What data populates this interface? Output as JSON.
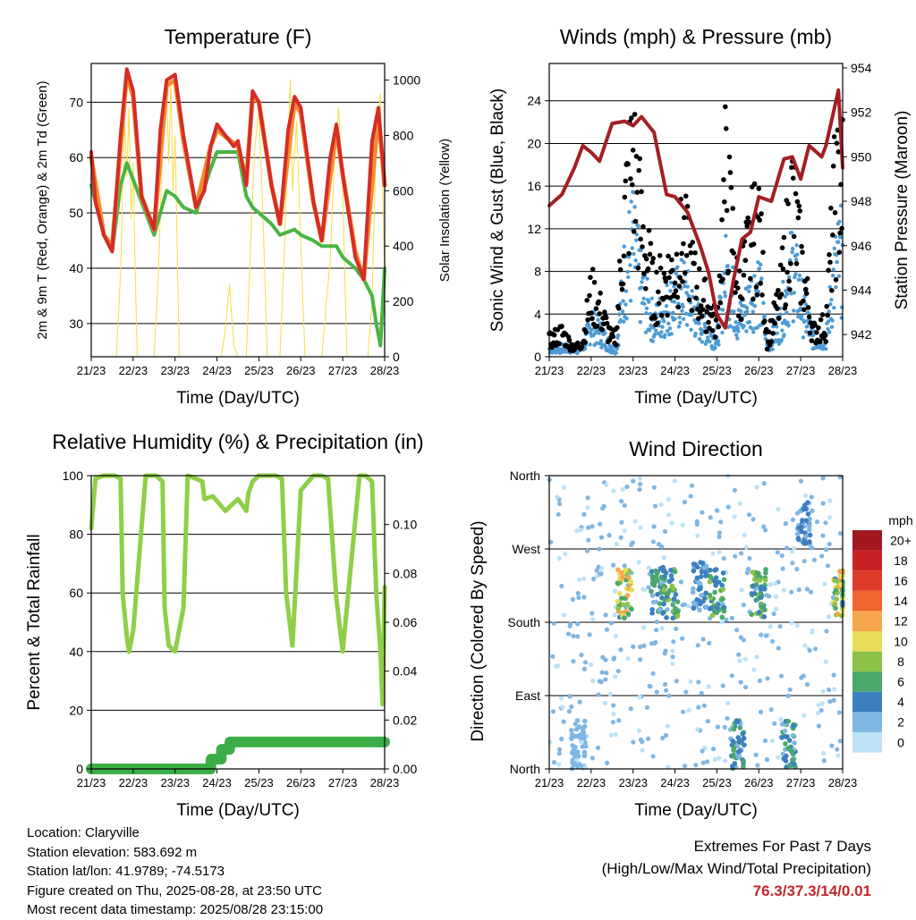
{
  "colors": {
    "red": "#d42c27",
    "orange": "#f58b2e",
    "green": "#49b542",
    "yellow": "#f5dd4c",
    "black": "#000000",
    "blue": "#4c9bd5",
    "maroon": "#a31f23",
    "rh_green": "#8ecf47",
    "precip_green": "#3cae48"
  },
  "chart_data": [
    {
      "type": "line",
      "title": "Temperature (F)",
      "xlabel": "Time (Day/UTC)",
      "ylabel": "2m & 9m T (Red, Orange) & 2m Td (Green)",
      "y2label": "Solar Insolation (Yellow)",
      "ylim": [
        24,
        77
      ],
      "y2lim": [
        0,
        1060
      ],
      "x_ticks": [
        "21/23",
        "22/23",
        "23/23",
        "24/23",
        "25/23",
        "26/23",
        "27/23",
        "28/23"
      ],
      "y_ticks": [
        30,
        40,
        50,
        60,
        70
      ],
      "y2_ticks": [
        0,
        200,
        400,
        600,
        800,
        1000
      ],
      "grid": true,
      "series": [
        {
          "name": "2m T",
          "color": "red",
          "x": [
            0,
            0.1,
            0.3,
            0.5,
            0.7,
            0.85,
            1.0,
            1.2,
            1.5,
            1.65,
            1.8,
            2.0,
            2.2,
            2.5,
            2.7,
            2.85,
            3.0,
            3.2,
            3.4,
            3.5,
            3.7,
            3.85,
            4.0,
            4.3,
            4.5,
            4.7,
            4.85,
            5.0,
            5.3,
            5.5,
            5.7,
            5.85,
            6.0,
            6.3,
            6.5,
            6.7,
            6.85,
            7.0
          ],
          "y": [
            61,
            52,
            46,
            43,
            64,
            76,
            72,
            53,
            47,
            65,
            74,
            75,
            64,
            51,
            54,
            62,
            66,
            64,
            62,
            63,
            55,
            72,
            70,
            55,
            48,
            65,
            71,
            69,
            52,
            45,
            60,
            66,
            57,
            42,
            38,
            63,
            69,
            55
          ]
        },
        {
          "name": "9m T",
          "color": "orange",
          "x": [
            0,
            0.3,
            0.5,
            0.7,
            0.85,
            1.0,
            1.2,
            1.5,
            1.8,
            2.0,
            2.2,
            2.5,
            2.85,
            3.0,
            3.5,
            3.7,
            3.85,
            4.0,
            4.3,
            4.5,
            4.85,
            5.0,
            5.3,
            5.5,
            5.85,
            6.0,
            6.3,
            6.5,
            6.85,
            7.0
          ],
          "y": [
            60,
            46,
            44,
            62,
            75,
            71,
            53,
            47,
            73,
            74,
            63,
            51,
            62,
            65,
            62,
            56,
            71,
            70,
            55,
            48,
            70,
            68,
            52,
            45,
            65,
            57,
            43,
            38,
            68,
            55
          ]
        },
        {
          "name": "2m Td",
          "color": "green",
          "x": [
            0,
            0.3,
            0.5,
            0.7,
            0.85,
            1.0,
            1.2,
            1.5,
            1.8,
            2.0,
            2.2,
            2.5,
            2.85,
            3.0,
            3.5,
            3.7,
            3.85,
            4.0,
            4.3,
            4.5,
            4.85,
            5.0,
            5.3,
            5.5,
            5.85,
            6.0,
            6.3,
            6.5,
            6.7,
            6.8,
            6.9,
            7.0
          ],
          "y": [
            55,
            46,
            43,
            55,
            59,
            56,
            52,
            46,
            54,
            53,
            51,
            50,
            58,
            61,
            61,
            53,
            51,
            50,
            48,
            46,
            47,
            46,
            45,
            44,
            44,
            42,
            40,
            38,
            35,
            30,
            26,
            40
          ]
        },
        {
          "name": "Solar Insolation",
          "color": "yellow",
          "axis": "y2",
          "x": [
            0,
            0.1,
            0.2,
            0.4,
            0.5,
            0.6,
            0.7,
            0.75,
            0.8,
            0.85,
            0.9,
            0.95,
            1.0,
            1.05,
            1.1,
            1.5,
            1.6,
            1.7,
            1.8,
            1.85,
            1.9,
            1.95,
            2.0,
            2.1,
            2.5,
            2.7,
            3.0,
            3.1,
            3.2,
            3.3,
            3.4,
            3.5,
            3.7,
            3.8,
            3.9,
            4.0,
            4.1,
            4.2,
            4.5,
            4.6,
            4.7,
            4.75,
            4.8,
            4.9,
            5.0,
            5.1,
            5.5,
            5.7,
            5.8,
            5.9,
            6.0,
            6.1,
            6.5,
            6.6,
            6.7,
            6.8,
            6.9,
            7.0
          ],
          "y": [
            0,
            0,
            0,
            0,
            0,
            0,
            300,
            600,
            850,
            650,
            900,
            500,
            700,
            300,
            0,
            0,
            300,
            750,
            950,
            700,
            1000,
            600,
            800,
            0,
            0,
            0,
            0,
            0,
            100,
            260,
            40,
            0,
            0,
            400,
            750,
            900,
            500,
            0,
            0,
            350,
            800,
            1000,
            600,
            850,
            400,
            0,
            0,
            350,
            700,
            900,
            600,
            0,
            0,
            0,
            200,
            800,
            950,
            300
          ]
        }
      ]
    },
    {
      "type": "scatter",
      "title": "Winds (mph) & Pressure (mb)",
      "xlabel": "Time (Day/UTC)",
      "ylabel": "Sonic Wind & Gust (Blue, Black)",
      "y2label": "Station Pressure (Maroon)",
      "ylim": [
        0,
        27.5
      ],
      "y2lim": [
        941.0,
        954.2
      ],
      "x_ticks": [
        "21/23",
        "22/23",
        "23/23",
        "24/23",
        "25/23",
        "26/23",
        "27/23",
        "28/23"
      ],
      "y_ticks": [
        0,
        4,
        8,
        12,
        16,
        20,
        24
      ],
      "y2_ticks": [
        942,
        944,
        946,
        948,
        950,
        952,
        954
      ],
      "grid": true,
      "series": [
        {
          "name": "Pressure",
          "color": "maroon",
          "axis": "y2",
          "x": [
            0,
            0.3,
            0.6,
            0.8,
            1.0,
            1.2,
            1.5,
            1.8,
            2.0,
            2.2,
            2.5,
            2.8,
            3.0,
            3.3,
            3.6,
            3.8,
            4.0,
            4.2,
            4.4,
            4.6,
            4.8,
            5.0,
            5.3,
            5.6,
            5.8,
            6.0,
            6.2,
            6.5,
            6.6,
            6.9,
            7.0
          ],
          "y": [
            947.8,
            948.3,
            949.5,
            950.5,
            950.2,
            949.8,
            951.5,
            951.6,
            951.4,
            951.8,
            951.1,
            948.3,
            948.2,
            947.5,
            946.0,
            944.8,
            942.9,
            942.3,
            944.5,
            946.3,
            946.6,
            948.2,
            948.0,
            949.9,
            950.0,
            949.0,
            950.5,
            950.0,
            950.5,
            953.0,
            949.5
          ]
        },
        {
          "name": "Gust",
          "color": "black",
          "x": [
            0,
            0.3,
            0.6,
            0.8,
            1.0,
            1.2,
            1.5,
            1.6,
            1.8,
            2.0,
            2.2,
            2.5,
            2.8,
            3.0,
            3.2,
            3.5,
            3.8,
            4.0,
            4.2,
            4.4,
            4.5,
            4.8,
            5.0,
            5.2,
            5.5,
            5.8,
            6.0,
            6.3,
            6.6,
            6.8,
            6.95
          ],
          "y": [
            2,
            3,
            1,
            2,
            8,
            6,
            2,
            3,
            18,
            25,
            16,
            8,
            10,
            11,
            15,
            9,
            6,
            4,
            22,
            14,
            8,
            14,
            17,
            2,
            7,
            20,
            12,
            3,
            4,
            19,
            22
          ]
        },
        {
          "name": "Wind",
          "color": "blue",
          "x": [
            0,
            0.3,
            0.6,
            0.8,
            1.0,
            1.2,
            1.5,
            1.6,
            1.8,
            2.0,
            2.2,
            2.5,
            2.8,
            3.0,
            3.2,
            3.5,
            3.8,
            4.0,
            4.2,
            4.4,
            4.5,
            4.8,
            5.0,
            5.2,
            5.5,
            5.8,
            6.0,
            6.3,
            6.6,
            6.8,
            6.95
          ],
          "y": [
            1,
            1,
            1,
            1,
            4,
            3,
            1,
            1,
            10,
            14,
            8,
            4,
            6,
            7,
            8,
            5,
            3,
            2,
            10,
            7,
            4,
            7,
            9,
            1,
            4,
            11,
            7,
            2,
            2,
            10,
            12
          ]
        }
      ]
    },
    {
      "type": "line",
      "title": "Relative Humidity (%) & Precipitation (in)",
      "xlabel": "Time (Day/UTC)",
      "ylabel": "Percent & Total Rainfall",
      "ylim": [
        0,
        100
      ],
      "y2lim": [
        0,
        0.12
      ],
      "x_ticks": [
        "21/23",
        "22/23",
        "23/23",
        "24/23",
        "25/23",
        "26/23",
        "27/23",
        "28/23"
      ],
      "y_ticks": [
        0,
        20,
        40,
        60,
        80,
        100
      ],
      "y2_ticks": [
        "0.00",
        "0.02",
        "0.04",
        "0.06",
        "0.08",
        "0.10"
      ],
      "grid": true,
      "series": [
        {
          "name": "RH",
          "color": "rh_green",
          "x": [
            0,
            0.1,
            0.3,
            0.55,
            0.7,
            0.75,
            0.85,
            0.9,
            1.0,
            1.3,
            1.55,
            1.7,
            1.75,
            1.85,
            2.0,
            2.2,
            2.3,
            2.5,
            2.65,
            2.7,
            2.9,
            3.2,
            3.5,
            3.6,
            3.7,
            3.75,
            3.85,
            4.0,
            4.4,
            4.55,
            4.65,
            4.8,
            5.0,
            5.3,
            5.5,
            5.65,
            5.85,
            6.0,
            6.4,
            6.55,
            6.7,
            6.8,
            6.9,
            6.95,
            7.0
          ],
          "y": [
            82,
            99,
            100,
            100,
            99,
            60,
            45,
            40,
            47,
            100,
            100,
            98,
            55,
            42,
            40,
            55,
            100,
            99,
            98,
            92,
            93,
            88,
            92,
            90,
            88,
            94,
            98,
            100,
            100,
            99,
            60,
            42,
            95,
            100,
            100,
            99,
            58,
            40,
            100,
            100,
            98,
            60,
            40,
            22,
            62
          ]
        },
        {
          "name": "Precipitation",
          "color": "precip_green",
          "axis": "y2",
          "x": [
            0,
            1.0,
            2.0,
            2.85,
            2.86,
            3.1,
            3.11,
            3.3,
            3.31,
            7.0
          ],
          "y": [
            0,
            0,
            0,
            0,
            0.004,
            0.004,
            0.008,
            0.008,
            0.011,
            0.011
          ]
        }
      ]
    },
    {
      "type": "scatter",
      "title": "Wind Direction",
      "xlabel": "Time (Day/UTC)",
      "ylabel": "Direction (Colored By Speed)",
      "ylim": [
        0,
        360
      ],
      "x_ticks": [
        "21/23",
        "22/23",
        "23/23",
        "24/23",
        "25/23",
        "26/23",
        "27/23",
        "28/23"
      ],
      "y_ticks": [
        "North",
        "East",
        "South",
        "West",
        "North"
      ],
      "grid": true,
      "legend": {
        "title": "mph",
        "labels": [
          "20+",
          "18",
          "16",
          "14",
          "12",
          "10",
          "8",
          "6",
          "4",
          "2",
          "0"
        ],
        "colors": [
          "#a1191e",
          "#c92126",
          "#e03a2a",
          "#f0642f",
          "#f6a64d",
          "#e8dd58",
          "#8cc24a",
          "#4aa86b",
          "#3c7fbf",
          "#7fb6e3",
          "#bde1f5"
        ],
        "placement": "right"
      },
      "clusters": [
        {
          "x": 1.8,
          "dir": 215,
          "speed": 12
        },
        {
          "x": 2.6,
          "dir": 220,
          "speed": 6
        },
        {
          "x": 2.9,
          "dir": 215,
          "speed": 7
        },
        {
          "x": 3.6,
          "dir": 225,
          "speed": 4
        },
        {
          "x": 4.0,
          "dir": 215,
          "speed": 8
        },
        {
          "x": 5.0,
          "dir": 215,
          "speed": 8
        },
        {
          "x": 6.95,
          "dir": 215,
          "speed": 11
        },
        {
          "x": 0.7,
          "dir": 30,
          "speed": 2
        },
        {
          "x": 4.5,
          "dir": 30,
          "speed": 6
        },
        {
          "x": 5.7,
          "dir": 30,
          "speed": 6
        },
        {
          "x": 6.1,
          "dir": 300,
          "speed": 4
        }
      ]
    }
  ],
  "info": {
    "location": "Location: Claryville",
    "elevation": "Station elevation: 583.692 m",
    "latlon": "Station lat/lon: 41.9789; -74.5173",
    "created": "Figure created on Thu, 2025-08-28, at 23:50 UTC",
    "recent": "Most recent data timestamp: 2025/08/28 23:15:00"
  },
  "extremes": {
    "line1": "Extremes For Past 7 Days",
    "line2": "(High/Low/Max Wind/Total Precipitation)",
    "values": "76.3/37.3/14/0.01"
  }
}
